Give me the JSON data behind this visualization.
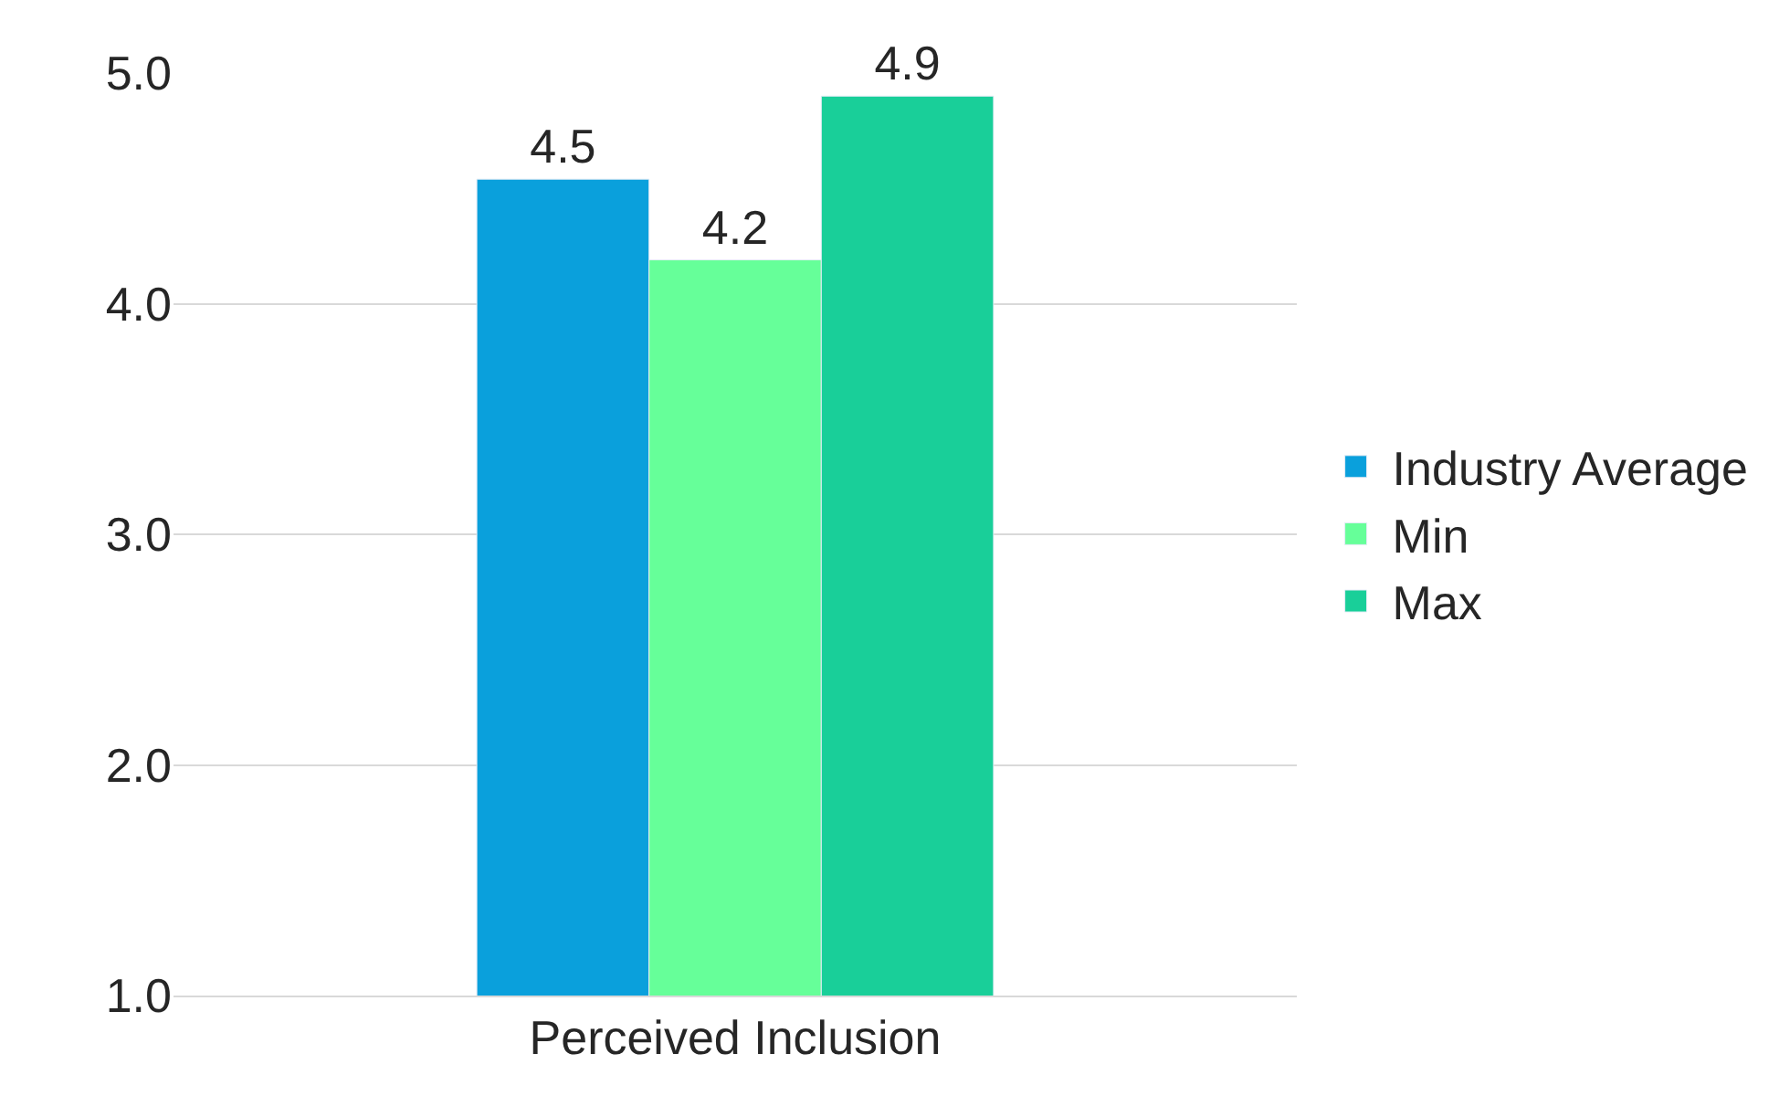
{
  "chart_data": {
    "type": "bar",
    "categories": [
      "Perceived Inclusion"
    ],
    "series": [
      {
        "name": "Industry Average",
        "color": "#0aa0dc",
        "values": [
          4.54
        ],
        "value_labels": [
          "4.5"
        ]
      },
      {
        "name": "Min",
        "color": "#66ff99",
        "values": [
          4.19
        ],
        "value_labels": [
          "4.2"
        ]
      },
      {
        "name": "Max",
        "color": "#19cf99",
        "values": [
          4.9
        ],
        "value_labels": [
          "4.9"
        ]
      }
    ],
    "ylim": [
      1,
      5
    ],
    "yticks": [
      {
        "value": 1,
        "label": "1.0"
      },
      {
        "value": 2,
        "label": "2.0"
      },
      {
        "value": 3,
        "label": "3.0"
      },
      {
        "value": 4,
        "label": "4.0"
      },
      {
        "value": 5,
        "label": "5.0"
      }
    ],
    "grid": "y",
    "legend": "right"
  }
}
